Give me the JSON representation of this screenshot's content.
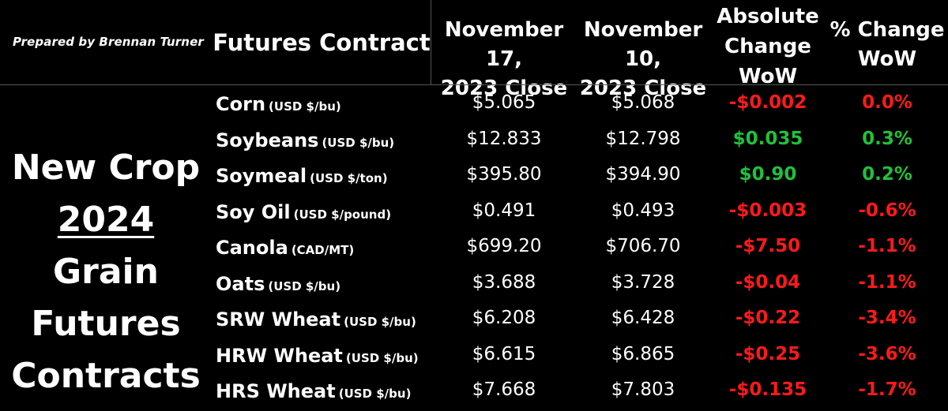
{
  "prepared_by": "Prepared by Brennan Turner",
  "headers": {
    "contract": "Futures Contract",
    "nov17_line1": "November 17,",
    "nov17_line2": "2023 Close",
    "nov10_line1": "November 10,",
    "nov10_line2": "2023 Close",
    "abs_line1": "Absolute",
    "abs_line2": "Change",
    "abs_line3": "WoW",
    "pct_line1": "% Change",
    "pct_line2": "WoW"
  },
  "title": {
    "line1": "New Crop",
    "year": "2024",
    "line2_rest": " Grain",
    "line3": "Futures",
    "line4": "Contracts"
  },
  "colors": {
    "negative": "#ff1a1a",
    "positive": "#1fc23a",
    "background": "#000000"
  },
  "rows": [
    {
      "name": "Corn",
      "unit": "(USD $/bu)",
      "nov17": "$5.065",
      "nov10": "$5.068",
      "abs": "-$0.002",
      "pct": "0.0%",
      "abs_sign": "neg",
      "pct_sign": "neg"
    },
    {
      "name": "Soybeans",
      "unit": "(USD $/bu)",
      "nov17": "$12.833",
      "nov10": "$12.798",
      "abs": "$0.035",
      "pct": "0.3%",
      "abs_sign": "pos",
      "pct_sign": "pos"
    },
    {
      "name": "Soymeal",
      "unit": "(USD $/ton)",
      "nov17": "$395.80",
      "nov10": "$394.90",
      "abs": "$0.90",
      "pct": "0.2%",
      "abs_sign": "pos",
      "pct_sign": "pos"
    },
    {
      "name": "Soy Oil",
      "unit": "(USD $/pound)",
      "nov17": "$0.491",
      "nov10": "$0.493",
      "abs": "-$0.003",
      "pct": "-0.6%",
      "abs_sign": "neg",
      "pct_sign": "neg"
    },
    {
      "name": "Canola",
      "unit": "(CAD/MT)",
      "nov17": "$699.20",
      "nov10": "$706.70",
      "abs": "-$7.50",
      "pct": "-1.1%",
      "abs_sign": "neg",
      "pct_sign": "neg"
    },
    {
      "name": "Oats",
      "unit": "(USD $/bu)",
      "nov17": "$3.688",
      "nov10": "$3.728",
      "abs": "-$0.04",
      "pct": "-1.1%",
      "abs_sign": "neg",
      "pct_sign": "neg"
    },
    {
      "name": "SRW Wheat",
      "unit": "(USD $/bu)",
      "nov17": "$6.208",
      "nov10": "$6.428",
      "abs": "-$0.22",
      "pct": "-3.4%",
      "abs_sign": "neg",
      "pct_sign": "neg"
    },
    {
      "name": "HRW Wheat",
      "unit": "(USD $/bu)",
      "nov17": "$6.615",
      "nov10": "$6.865",
      "abs": "-$0.25",
      "pct": "-3.6%",
      "abs_sign": "neg",
      "pct_sign": "neg"
    },
    {
      "name": "HRS Wheat",
      "unit": "(USD $/bu)",
      "nov17": "$7.668",
      "nov10": "$7.803",
      "abs": "-$0.135",
      "pct": "-1.7%",
      "abs_sign": "neg",
      "pct_sign": "neg"
    }
  ]
}
